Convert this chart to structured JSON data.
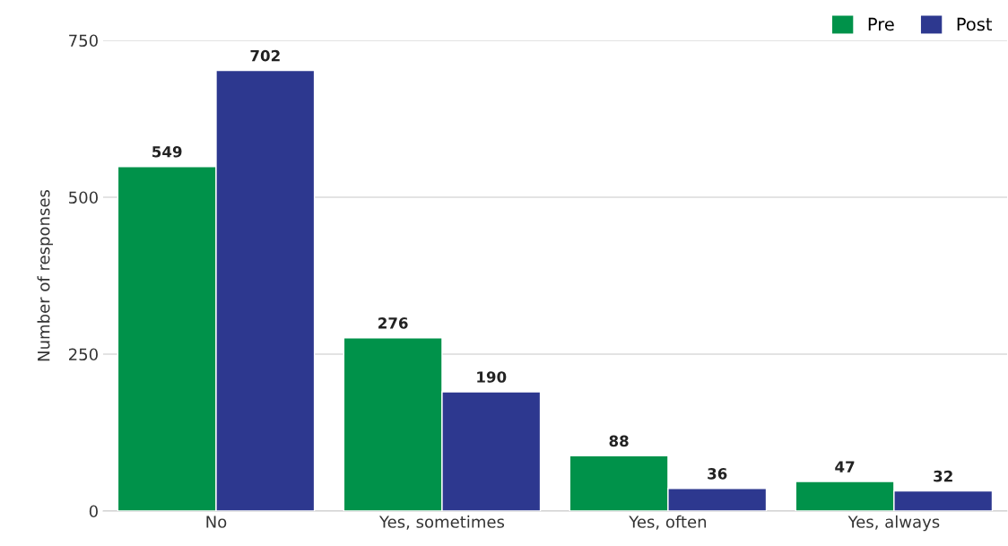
{
  "chart_data": {
    "type": "bar",
    "ylabel": "Number of responses",
    "categories": [
      "No",
      "Yes, sometimes",
      "Yes, often",
      "Yes, always"
    ],
    "series": [
      {
        "name": "Pre",
        "color": "#00924a",
        "values": [
          549,
          276,
          88,
          47
        ]
      },
      {
        "name": "Post",
        "color": "#2d388f",
        "values": [
          702,
          190,
          36,
          32
        ]
      }
    ],
    "ylim": [
      0,
      750
    ],
    "yticks": [
      0,
      250,
      500,
      750
    ],
    "grid": "y",
    "legend": "top right",
    "data_labels": true
  }
}
